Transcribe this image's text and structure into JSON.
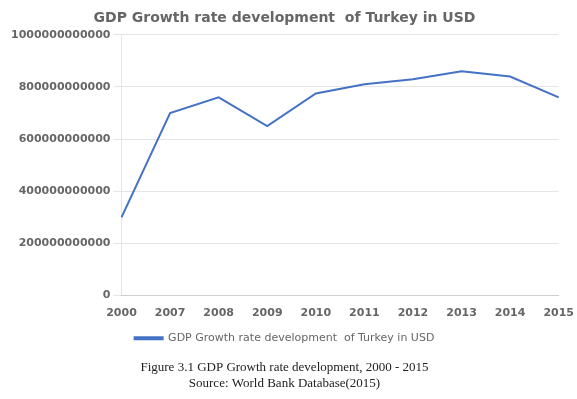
{
  "chart_data": {
    "type": "line",
    "title": "GDP Growth rate development  of Turkey in USD",
    "categories": [
      "2000",
      "2007",
      "2008",
      "2009",
      "2010",
      "2011",
      "2012",
      "2013",
      "2014",
      "2015"
    ],
    "series": [
      {
        "name": "GDP Growth rate development  of Turkey in USD",
        "color": "#4472C4",
        "values": [
          300000000000,
          700000000000,
          760000000000,
          650000000000,
          775000000000,
          810000000000,
          830000000000,
          860000000000,
          840000000000,
          760000000000
        ]
      }
    ],
    "ylim": [
      0,
      1000000000000
    ],
    "yticks": [
      0,
      200000000000,
      400000000000,
      600000000000,
      800000000000,
      1000000000000
    ],
    "grid": true,
    "legend": "bottom",
    "annotations": [
      "Figure 3.1 GDP Growth rate development, 2000 - 2015",
      "Source: World Bank Database(2015)"
    ]
  }
}
